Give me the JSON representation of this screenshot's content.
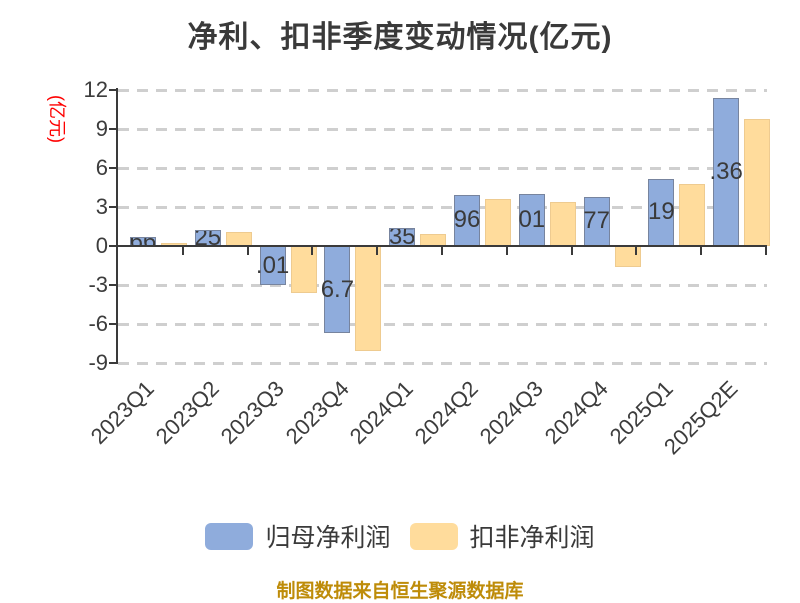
{
  "title": "净利、扣非季度变动情况(亿元)",
  "y_axis": {
    "label": "(亿元)",
    "ticks": [
      "12",
      "9",
      "6",
      "3",
      "0",
      "-3",
      "-6",
      "-9"
    ]
  },
  "footer": "制图数据来自恒生聚源数据库",
  "legend": {
    "items": [
      {
        "label": "归母净利润",
        "color": "#8facdc"
      },
      {
        "label": "扣非净利润",
        "color": "#ffdc9c"
      }
    ]
  },
  "colors": {
    "blue_fill": "#8facdc",
    "blue_border": "#77849e",
    "yellow_fill": "#ffdc9c",
    "yellow_border": "#eecb90",
    "axis": "#3a3a3a",
    "grid": "#cfcfcf",
    "y_unit_label": "#fe0000",
    "footer_text": "#be8c09"
  },
  "chart_data": {
    "type": "bar",
    "title": "净利、扣非季度变动情况(亿元)",
    "ylabel": "(亿元)",
    "xlabel": "",
    "ylim": [
      -9,
      12
    ],
    "ytick_step": 3,
    "grid": true,
    "legend_position": "bottom",
    "categories": [
      "2023Q1",
      "2023Q2",
      "2023Q3",
      "2023Q4",
      "2024Q1",
      "2024Q2",
      "2024Q3",
      "2024Q4",
      "2025Q1",
      "2025Q2E"
    ],
    "series": [
      {
        "name": "归母净利润",
        "values": [
          0.66,
          1.25,
          -3.01,
          -6.7,
          1.35,
          3.96,
          4.01,
          3.77,
          5.19,
          11.36
        ],
        "visible_bar_labels": [
          "66",
          "25",
          ".01",
          "6.7",
          "35",
          "96",
          "01",
          "77",
          "19",
          ".36"
        ]
      },
      {
        "name": "扣非净利润",
        "values": [
          0.2,
          1.1,
          -3.6,
          -8.1,
          0.95,
          3.6,
          3.4,
          -1.6,
          4.8,
          9.8
        ],
        "visible_bar_labels": []
      }
    ]
  }
}
